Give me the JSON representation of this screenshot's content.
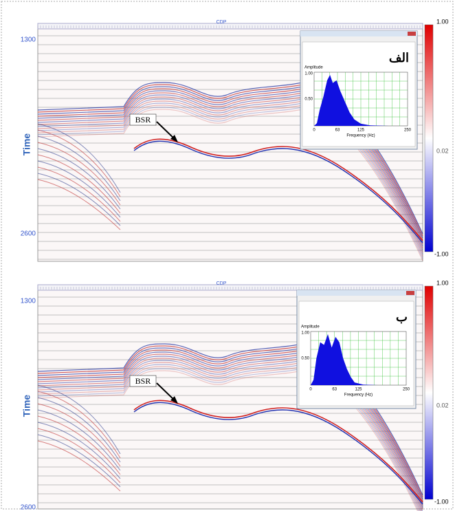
{
  "panels": [
    {
      "label": "الف",
      "cdp_label": "CDP",
      "time_label": "Time",
      "time_ticks": [
        "1300",
        "2600"
      ],
      "annotation": "BSR",
      "colorbar_ticks": [
        "1.00",
        "0.02",
        "-1.00"
      ],
      "spectrum": {
        "y_title": "Amplitude",
        "y_ticks": [
          "1.00",
          "0.50"
        ],
        "x_ticks": [
          "0",
          "63",
          "125",
          "250"
        ],
        "x_label": "Frequency (Hz)"
      }
    },
    {
      "label": "ب",
      "cdp_label": "CDP",
      "time_label": "Time",
      "time_ticks": [
        "1300",
        "2600"
      ],
      "annotation": "BSR",
      "colorbar_ticks": [
        "1.00",
        "0.02",
        "-1.00"
      ],
      "spectrum": {
        "y_title": "Amplitude",
        "y_ticks": [
          "1.00",
          "0.50"
        ],
        "x_ticks": [
          "0",
          "63",
          "125",
          "250"
        ],
        "x_label": "Frequency (Hz)"
      }
    }
  ]
}
